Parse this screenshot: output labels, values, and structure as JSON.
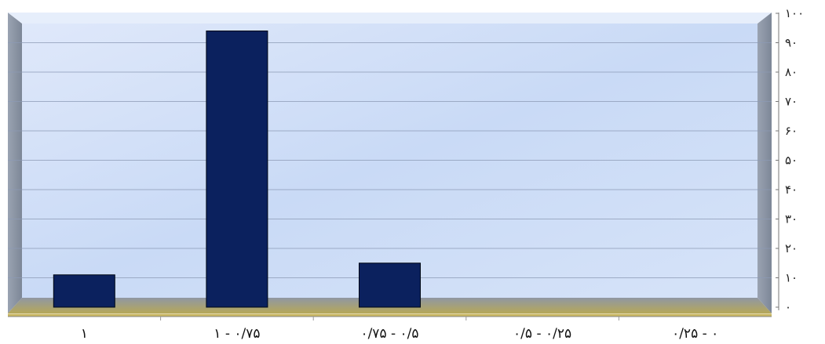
{
  "chart_data": {
    "type": "bar",
    "direction": "rtl",
    "categories": [
      "۰ - ۰/۲۵",
      "۰/۲۵ - ۰/۵",
      "۰/۵ - ۰/۷۵",
      "۰/۷۵ - ۱",
      "۱"
    ],
    "values": [
      0,
      0,
      15,
      94,
      11
    ],
    "ylim": [
      0,
      100
    ],
    "yticks": [
      0,
      10,
      20,
      30,
      40,
      50,
      60,
      70,
      80,
      90,
      100
    ],
    "ytick_labels": [
      "۰",
      "۱۰",
      "۲۰",
      "۳۰",
      "۴۰",
      "۵۰",
      "۶۰",
      "۷۰",
      "۸۰",
      "۹۰",
      "۱۰۰"
    ],
    "y_axis_position": "right",
    "grid": true,
    "legend": "none",
    "bar_color": "#0b215e",
    "wall_color": "#cddcf5",
    "side_wall_color": "#8a93a3",
    "floor_color": "#c4b25e",
    "title": "",
    "xlabel": "",
    "ylabel": ""
  }
}
